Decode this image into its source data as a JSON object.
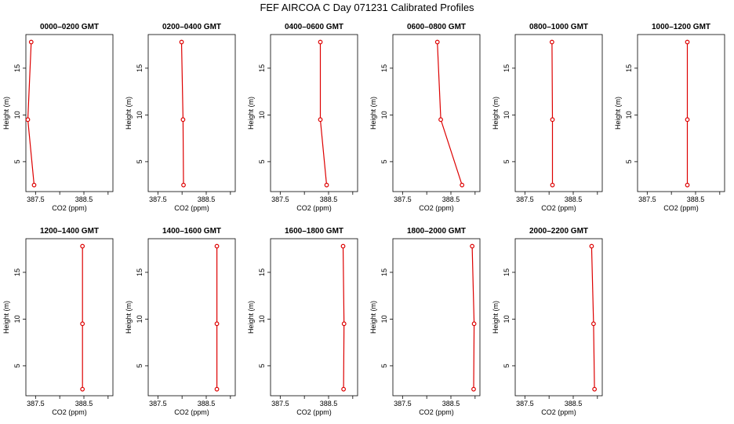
{
  "title": "FEF AIRCOA C  Day 071231  Calibrated Profiles",
  "chart_data": {
    "type": "line",
    "xlabel": "CO2 (ppm)",
    "ylabel": "Height (m)",
    "xlim": [
      387.3,
      389.1
    ],
    "ylim": [
      1.8,
      18.6
    ],
    "xticks": [
      387.5,
      388.0,
      388.5,
      389.0
    ],
    "xtick_labels": [
      "387.5",
      "",
      "388.5",
      ""
    ],
    "yticks": [
      5,
      10,
      15
    ],
    "ytick_labels": [
      "5",
      "10",
      "15"
    ],
    "heights": [
      2.5,
      9.5,
      17.8
    ],
    "line_color": "#dd0000",
    "panels": [
      {
        "title": "0000–0200 GMT",
        "co2": [
          387.47,
          387.34,
          387.41
        ]
      },
      {
        "title": "0200–0400 GMT",
        "co2": [
          388.03,
          388.02,
          387.99
        ]
      },
      {
        "title": "0400–0600 GMT",
        "co2": [
          388.46,
          388.33,
          388.33
        ]
      },
      {
        "title": "0600–0800 GMT",
        "co2": [
          388.73,
          388.29,
          388.22
        ]
      },
      {
        "title": "0800–1000 GMT",
        "co2": [
          388.07,
          388.07,
          388.06
        ]
      },
      {
        "title": "1000–1200 GMT",
        "co2": [
          388.33,
          388.33,
          388.33
        ]
      },
      {
        "title": "1200–1400 GMT",
        "co2": [
          388.47,
          388.47,
          388.47
        ]
      },
      {
        "title": "1400–1600 GMT",
        "co2": [
          388.72,
          388.72,
          388.72
        ]
      },
      {
        "title": "1600–1800 GMT",
        "co2": [
          388.81,
          388.82,
          388.8
        ]
      },
      {
        "title": "1800–2000 GMT",
        "co2": [
          388.97,
          388.98,
          388.94
        ]
      },
      {
        "title": "2000–2200 GMT",
        "co2": [
          388.94,
          388.92,
          388.88
        ]
      }
    ]
  }
}
